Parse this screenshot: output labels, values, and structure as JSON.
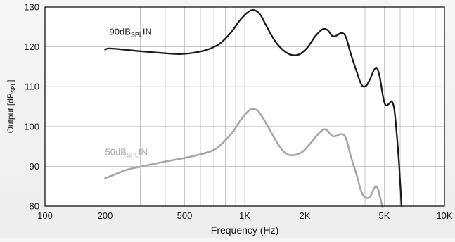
{
  "chart_data": {
    "type": "line",
    "x_scale": "log",
    "x_unit": "Hz",
    "xlabel": "Frequency (Hz)",
    "ylabel": {
      "main": "Output [dB",
      "sub": "SPL",
      "tail": "]"
    },
    "xlim": [
      100,
      10000
    ],
    "ylim": [
      80,
      130
    ],
    "grid": true,
    "x_ticks": [
      {
        "value": 100,
        "label": "100"
      },
      {
        "value": 200,
        "label": "200"
      },
      {
        "value": 500,
        "label": "500"
      },
      {
        "value": 1000,
        "label": "1K"
      },
      {
        "value": 2000,
        "label": "2K"
      },
      {
        "value": 5000,
        "label": "5K"
      },
      {
        "value": 10000,
        "label": "10K"
      }
    ],
    "y_ticks": [
      80,
      90,
      100,
      110,
      120,
      130
    ],
    "series": [
      {
        "name": {
          "main": "90dB",
          "sub": "SPL",
          "tail": "IN"
        },
        "color": "#1a1a1a",
        "label_anchor": {
          "x": 210,
          "y": 123
        },
        "points": [
          [
            200,
            119.3
          ],
          [
            210,
            119.6
          ],
          [
            250,
            119.3
          ],
          [
            300,
            118.9
          ],
          [
            400,
            118.4
          ],
          [
            470,
            118.2
          ],
          [
            550,
            118.5
          ],
          [
            650,
            119.3
          ],
          [
            750,
            120.8
          ],
          [
            850,
            123.5
          ],
          [
            950,
            126.8
          ],
          [
            1050,
            128.9
          ],
          [
            1120,
            129.2
          ],
          [
            1200,
            128.0
          ],
          [
            1300,
            124.7
          ],
          [
            1450,
            120.8
          ],
          [
            1650,
            118.3
          ],
          [
            1850,
            118.0
          ],
          [
            2050,
            119.7
          ],
          [
            2250,
            122.6
          ],
          [
            2450,
            124.4
          ],
          [
            2600,
            124.2
          ],
          [
            2750,
            122.7
          ],
          [
            2900,
            122.9
          ],
          [
            3050,
            123.5
          ],
          [
            3200,
            122.6
          ],
          [
            3400,
            118.2
          ],
          [
            3650,
            113.5
          ],
          [
            3850,
            110.4
          ],
          [
            4050,
            110.2
          ],
          [
            4250,
            112.0
          ],
          [
            4450,
            114.3
          ],
          [
            4600,
            114.6
          ],
          [
            4750,
            112.2
          ],
          [
            4950,
            107.0
          ],
          [
            5100,
            105.3
          ],
          [
            5300,
            105.8
          ],
          [
            5450,
            106.3
          ],
          [
            5600,
            104.5
          ],
          [
            5750,
            99.0
          ],
          [
            5900,
            92.0
          ],
          [
            6000,
            86.0
          ],
          [
            6100,
            80.0
          ]
        ]
      },
      {
        "name": {
          "main": "50dB",
          "sub": "SPL",
          "tail": "IN"
        },
        "color": "#a6a6a6",
        "label_anchor": {
          "x": 200,
          "y": 92.8
        },
        "points": [
          [
            200,
            87.0
          ],
          [
            230,
            88.2
          ],
          [
            260,
            89.2
          ],
          [
            300,
            89.9
          ],
          [
            350,
            90.6
          ],
          [
            400,
            91.2
          ],
          [
            500,
            92.1
          ],
          [
            600,
            93.0
          ],
          [
            700,
            94.1
          ],
          [
            780,
            96.0
          ],
          [
            870,
            98.6
          ],
          [
            960,
            101.8
          ],
          [
            1050,
            104.0
          ],
          [
            1110,
            104.4
          ],
          [
            1180,
            103.6
          ],
          [
            1300,
            100.2
          ],
          [
            1450,
            96.0
          ],
          [
            1600,
            93.3
          ],
          [
            1750,
            92.8
          ],
          [
            1950,
            93.7
          ],
          [
            2150,
            96.0
          ],
          [
            2350,
            98.3
          ],
          [
            2500,
            99.3
          ],
          [
            2600,
            98.9
          ],
          [
            2750,
            97.6
          ],
          [
            2900,
            97.7
          ],
          [
            3050,
            98.1
          ],
          [
            3200,
            97.2
          ],
          [
            3400,
            92.5
          ],
          [
            3650,
            87.5
          ],
          [
            3850,
            83.4
          ],
          [
            4050,
            82.1
          ],
          [
            4250,
            82.5
          ],
          [
            4450,
            84.5
          ],
          [
            4550,
            85.0
          ],
          [
            4650,
            84.2
          ],
          [
            4800,
            81.5
          ],
          [
            4900,
            79.9
          ]
        ]
      }
    ]
  }
}
